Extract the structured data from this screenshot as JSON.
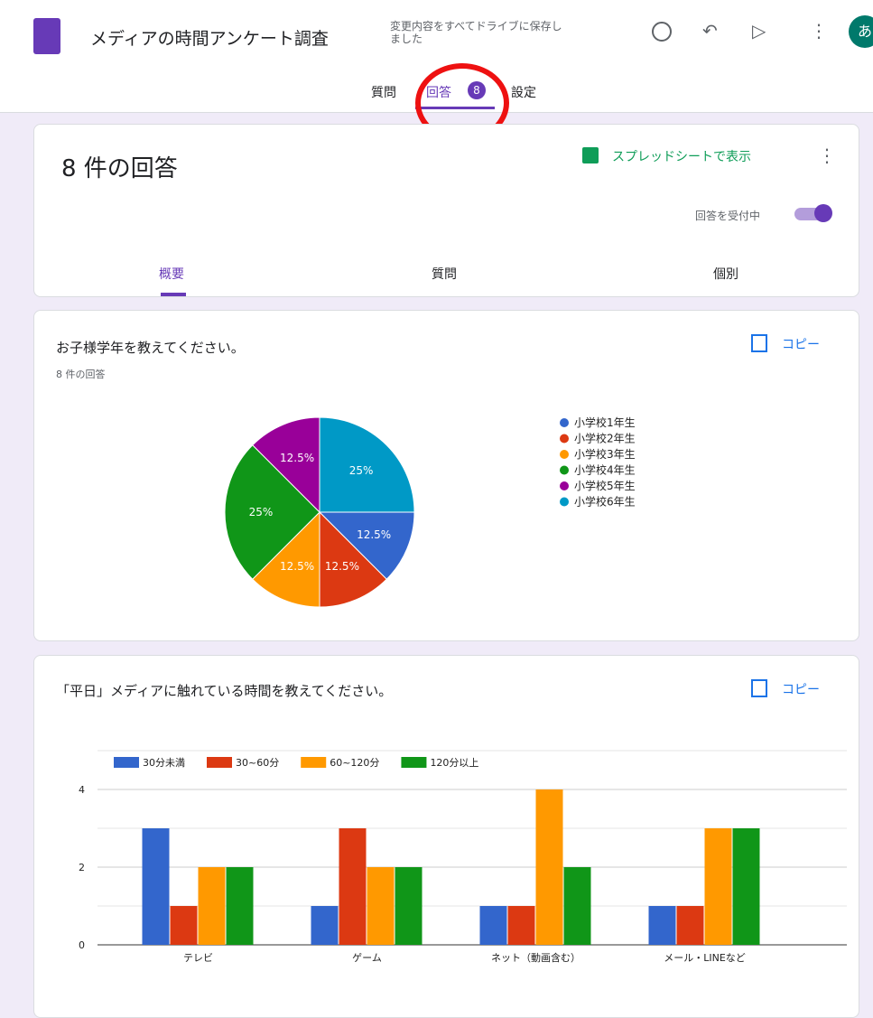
{
  "header": {
    "title": "メディアの時間アンケート調査",
    "save_note": "変更内容をすべてドライブに保存しました",
    "avatar": "あ"
  },
  "tabs": [
    {
      "label": "質問"
    },
    {
      "label": "回答",
      "badge": "8"
    },
    {
      "label": "設定"
    }
  ],
  "summary": {
    "title": "8 件の回答",
    "sheet_link": "スプレッドシートで表示",
    "accepting": "回答を受付中",
    "subtabs": [
      "概要",
      "質問",
      "個別"
    ]
  },
  "chart_data": [
    {
      "type": "pie",
      "title": "お子様学年を教えてください。",
      "subtitle": "8 件の回答",
      "copy_button": "コピー",
      "categories": [
        "小学校1年生",
        "小学校2年生",
        "小学校3年生",
        "小学校4年生",
        "小学校5年生",
        "小学校6年生"
      ],
      "values": [
        12.5,
        12.5,
        12.5,
        25,
        12.5,
        25
      ],
      "value_labels": [
        "12.5%",
        "12.5%",
        "12.5%",
        "25%",
        "12.5%",
        "25%"
      ],
      "colors": [
        "#3366cc",
        "#dc3912",
        "#ff9900",
        "#109618",
        "#990099",
        "#0099c6"
      ],
      "legend": "right"
    },
    {
      "type": "bar",
      "title": "「平日」メディアに触れている時間を教えてください。",
      "copy_button": "コピー",
      "categories": [
        "テレビ",
        "ゲーム",
        "ネット（動画含む）",
        "メール・LINEなど"
      ],
      "series": [
        {
          "name": "30分未満",
          "color": "#3366cc",
          "values": [
            3,
            1,
            1,
            1
          ]
        },
        {
          "name": "30~60分",
          "color": "#dc3912",
          "values": [
            1,
            3,
            1,
            1
          ]
        },
        {
          "name": "60~120分",
          "color": "#ff9900",
          "values": [
            2,
            2,
            4,
            3
          ]
        },
        {
          "name": "120分以上",
          "color": "#109618",
          "values": [
            2,
            2,
            2,
            3
          ]
        }
      ],
      "ylim": [
        0,
        5
      ],
      "yticks": [
        0,
        2,
        4
      ],
      "minor_yticks": [
        1,
        3,
        5
      ],
      "grid": true,
      "legend": "top"
    }
  ]
}
